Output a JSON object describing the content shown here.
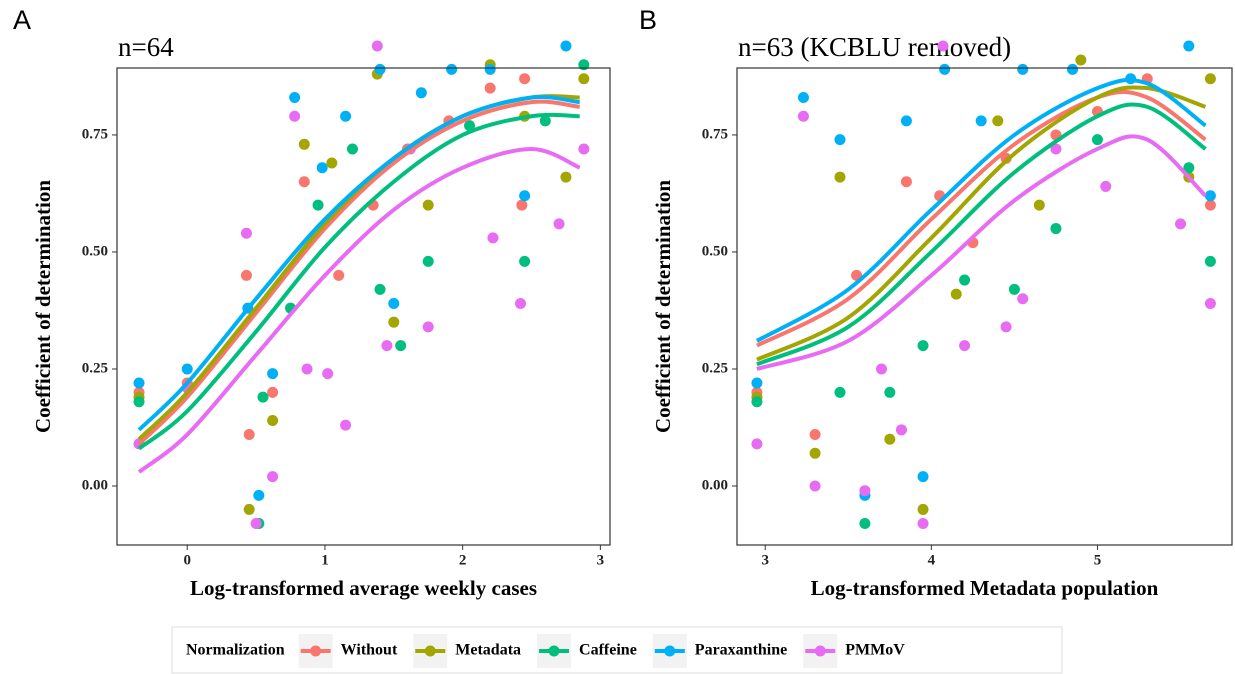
{
  "chart_data": [
    {
      "type": "scatter",
      "panel_label": "A",
      "title": "n=64",
      "x_label": "Log-transformed average weekly cases",
      "y_label": "Coefficient of determination",
      "legend_title": "Normalization",
      "xlim": [
        -0.51,
        3.07
      ],
      "ylim": [
        -0.126,
        0.893
      ],
      "xticks": [
        0,
        1,
        2,
        3
      ],
      "yticks": [
        {
          "value": 0,
          "label": "0.00"
        },
        {
          "value": 0.25,
          "label": "0.25"
        },
        {
          "value": 0.5,
          "label": "0.50"
        },
        {
          "value": 0.75,
          "label": "0.75"
        }
      ],
      "series": [
        {
          "name": "Without",
          "color": "#F8766D",
          "x": [
            -0.35,
            0,
            0.43,
            0.45,
            0.62,
            0.85,
            1.1,
            1.35,
            1.6,
            1.9,
            2.2,
            2.45,
            2.43
          ],
          "values": [
            0.2,
            0.22,
            0.45,
            0.11,
            0.2,
            0.65,
            0.45,
            0.6,
            0.72,
            0.78,
            0.85,
            0.87,
            0.6
          ]
        },
        {
          "name": "Metadata",
          "color": "#A3A500",
          "x": [
            -0.35,
            0.45,
            0.62,
            0.85,
            1.05,
            1.38,
            1.5,
            1.75,
            2.2,
            2.45,
            2.75,
            2.88
          ],
          "values": [
            0.19,
            -0.05,
            0.14,
            0.73,
            0.69,
            0.88,
            0.35,
            0.6,
            0.9,
            0.79,
            0.66,
            0.87
          ]
        },
        {
          "name": "Caffeine",
          "color": "#00BF7D",
          "x": [
            -0.35,
            0.52,
            0.55,
            0.75,
            0.95,
            1.2,
            1.4,
            1.55,
            1.75,
            2.05,
            2.45,
            2.6,
            2.88
          ],
          "values": [
            0.18,
            -0.08,
            0.19,
            0.38,
            0.6,
            0.72,
            0.42,
            0.3,
            0.48,
            0.77,
            0.48,
            0.78,
            0.9
          ]
        },
        {
          "name": "Paraxanthine",
          "color": "#00B0F6",
          "x": [
            -0.35,
            0,
            0.44,
            0.52,
            0.62,
            0.78,
            0.98,
            1.15,
            1.4,
            1.5,
            1.7,
            1.92,
            2.2,
            2.45,
            2.75
          ],
          "values": [
            0.22,
            0.25,
            0.38,
            -0.02,
            0.24,
            0.83,
            0.68,
            0.79,
            0.89,
            0.39,
            0.84,
            0.89,
            0.89,
            0.62,
            0.94
          ]
        },
        {
          "name": "PMMoV",
          "color": "#E76BF3",
          "x": [
            -0.35,
            0,
            0.43,
            0.5,
            0.62,
            0.78,
            0.87,
            1.02,
            1.15,
            1.38,
            1.45,
            1.62,
            1.75,
            2.22,
            2.42,
            2.7,
            2.88
          ],
          "values": [
            0.09,
            0.21,
            0.54,
            -0.08,
            0.02,
            0.79,
            0.25,
            0.24,
            0.13,
            0.94,
            0.3,
            0.72,
            0.34,
            0.53,
            0.39,
            0.56,
            0.72
          ]
        }
      ],
      "curves": [
        {
          "color": "#F8766D",
          "x": [
            -0.35,
            0,
            0.5,
            1,
            1.5,
            2,
            2.5,
            2.85
          ],
          "values": [
            0.09,
            0.19,
            0.37,
            0.55,
            0.69,
            0.78,
            0.82,
            0.81
          ]
        },
        {
          "color": "#A3A500",
          "x": [
            -0.35,
            0,
            0.5,
            1,
            1.5,
            2,
            2.5,
            2.85
          ],
          "values": [
            0.1,
            0.2,
            0.38,
            0.56,
            0.7,
            0.79,
            0.83,
            0.83
          ]
        },
        {
          "color": "#00BF7D",
          "x": [
            -0.35,
            0,
            0.5,
            1,
            1.5,
            2,
            2.5,
            2.85
          ],
          "values": [
            0.08,
            0.16,
            0.33,
            0.51,
            0.65,
            0.75,
            0.79,
            0.79
          ]
        },
        {
          "color": "#00B0F6",
          "x": [
            -0.35,
            0,
            0.5,
            1,
            1.5,
            2,
            2.5,
            2.85
          ],
          "values": [
            0.12,
            0.22,
            0.4,
            0.57,
            0.7,
            0.79,
            0.83,
            0.82
          ]
        },
        {
          "color": "#E76BF3",
          "x": [
            -0.35,
            0,
            0.5,
            1,
            1.5,
            2,
            2.5,
            2.85
          ],
          "values": [
            0.03,
            0.11,
            0.28,
            0.45,
            0.59,
            0.68,
            0.72,
            0.68
          ]
        }
      ]
    },
    {
      "type": "scatter",
      "panel_label": "B",
      "title": "n=63 (KCBLU removed)",
      "x_label": "Log-transformed Metadata population",
      "y_label": "Coefficient of determination",
      "xlim": [
        2.83,
        5.81
      ],
      "ylim": [
        -0.126,
        0.893
      ],
      "xticks": [
        3,
        4,
        5
      ],
      "yticks": [
        {
          "value": 0,
          "label": "0.00"
        },
        {
          "value": 0.25,
          "label": "0.25"
        },
        {
          "value": 0.5,
          "label": "0.50"
        },
        {
          "value": 0.75,
          "label": "0.75"
        }
      ],
      "series": [
        {
          "color": "#F8766D",
          "x": [
            2.95,
            3.3,
            3.55,
            3.85,
            4.05,
            4.25,
            4.45,
            4.75,
            5.0,
            5.3,
            5.68
          ],
          "values": [
            0.2,
            0.11,
            0.45,
            0.65,
            0.62,
            0.52,
            0.7,
            0.75,
            0.8,
            0.87,
            0.6
          ]
        },
        {
          "color": "#A3A500",
          "x": [
            2.95,
            3.3,
            3.45,
            3.75,
            3.95,
            4.15,
            4.4,
            4.65,
            4.9,
            5.55,
            5.68
          ],
          "values": [
            0.19,
            0.07,
            0.66,
            0.1,
            -0.05,
            0.41,
            0.78,
            0.6,
            0.91,
            0.66,
            0.87
          ]
        },
        {
          "color": "#00BF7D",
          "x": [
            2.95,
            3.45,
            3.6,
            3.75,
            3.95,
            4.2,
            4.5,
            4.75,
            5.0,
            5.55,
            5.68
          ],
          "values": [
            0.18,
            0.2,
            -0.08,
            0.2,
            0.3,
            0.44,
            0.42,
            0.55,
            0.74,
            0.68,
            0.48
          ]
        },
        {
          "color": "#00B0F6",
          "x": [
            2.95,
            3.23,
            3.45,
            3.6,
            3.85,
            3.95,
            4.08,
            4.3,
            4.55,
            4.85,
            5.2,
            5.55,
            5.68
          ],
          "values": [
            0.22,
            0.83,
            0.74,
            -0.02,
            0.78,
            0.02,
            0.89,
            0.78,
            0.89,
            0.89,
            0.87,
            0.94,
            0.62
          ]
        },
        {
          "color": "#E76BF3",
          "x": [
            2.95,
            3.23,
            3.3,
            3.6,
            3.7,
            3.82,
            3.95,
            4.07,
            4.2,
            4.45,
            4.55,
            4.75,
            5.05,
            5.5,
            5.68
          ],
          "values": [
            0.09,
            0.79,
            0.0,
            -0.01,
            0.25,
            0.12,
            -0.08,
            0.94,
            0.3,
            0.34,
            0.4,
            0.72,
            0.64,
            0.56,
            0.39
          ]
        }
      ],
      "curves": [
        {
          "color": "#F8766D",
          "x": [
            2.95,
            3.5,
            4,
            4.5,
            5,
            5.3,
            5.65
          ],
          "values": [
            0.3,
            0.4,
            0.57,
            0.73,
            0.83,
            0.83,
            0.74
          ]
        },
        {
          "color": "#A3A500",
          "x": [
            2.95,
            3.5,
            4,
            4.5,
            5,
            5.3,
            5.65
          ],
          "values": [
            0.27,
            0.36,
            0.53,
            0.71,
            0.83,
            0.85,
            0.81
          ]
        },
        {
          "color": "#00BF7D",
          "x": [
            2.95,
            3.5,
            4,
            4.5,
            5,
            5.3,
            5.65
          ],
          "values": [
            0.26,
            0.34,
            0.5,
            0.67,
            0.79,
            0.81,
            0.72
          ]
        },
        {
          "color": "#00B0F6",
          "x": [
            2.95,
            3.5,
            4,
            4.5,
            5,
            5.3,
            5.65
          ],
          "values": [
            0.31,
            0.42,
            0.59,
            0.75,
            0.85,
            0.86,
            0.77
          ]
        },
        {
          "color": "#E76BF3",
          "x": [
            2.95,
            3.5,
            4,
            4.5,
            5,
            5.3,
            5.65
          ],
          "values": [
            0.25,
            0.31,
            0.45,
            0.61,
            0.72,
            0.74,
            0.62
          ]
        }
      ]
    }
  ]
}
